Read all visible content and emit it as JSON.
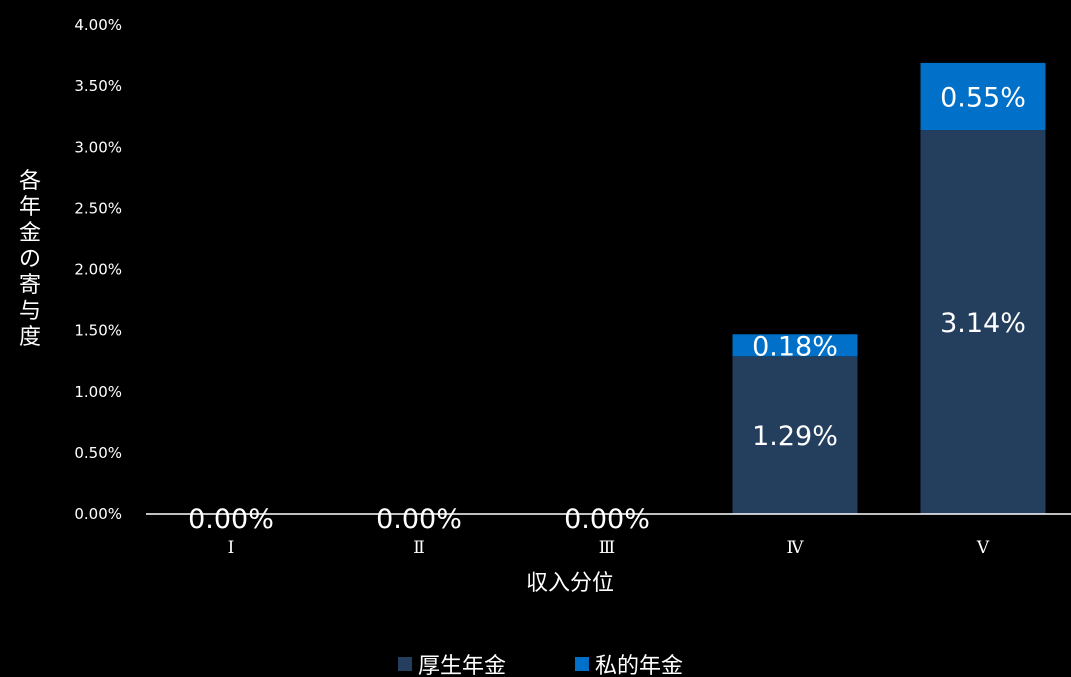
{
  "chart_data": {
    "type": "bar",
    "stacked": true,
    "categories": [
      "Ⅰ",
      "Ⅱ",
      "Ⅲ",
      "Ⅳ",
      "Ⅴ"
    ],
    "series": [
      {
        "name": "厚生年金",
        "color": "#243f5e",
        "values": [
          0.0,
          0.0,
          0.0,
          1.29,
          3.14
        ]
      },
      {
        "name": "私的年金",
        "color": "#0070c8",
        "values": [
          0.0,
          0.0,
          0.0,
          0.18,
          0.55
        ]
      }
    ],
    "data_labels": {
      "厚生年金": [
        "0.00%",
        "0.00%",
        "0.00%",
        "1.29%",
        "3.14%"
      ],
      "私的年金": [
        "",
        "",
        "",
        "0.18%",
        "0.55%"
      ]
    },
    "y_ticks": [
      "0.00%",
      "0.50%",
      "1.00%",
      "1.50%",
      "2.00%",
      "2.50%",
      "3.00%",
      "3.50%",
      "4.00%"
    ],
    "ylim": [
      0,
      4
    ],
    "xlabel": "収入分位",
    "ylabel": "各年金の寄与度",
    "grid": false,
    "legend_position": "bottom"
  }
}
